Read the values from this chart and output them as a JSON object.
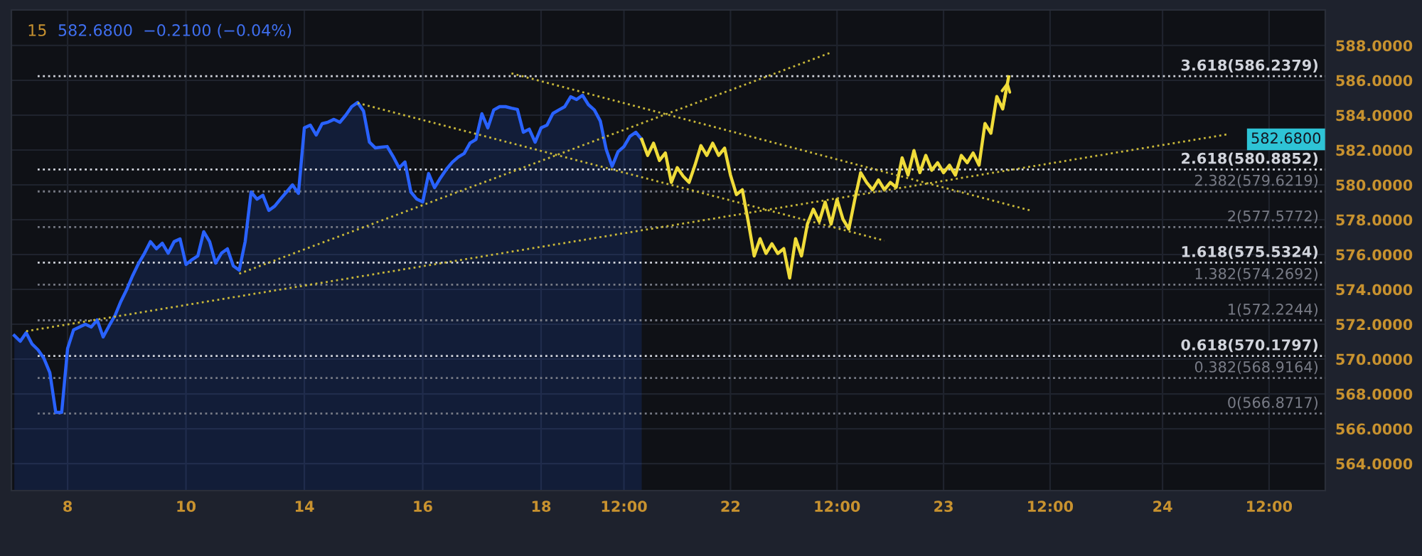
{
  "chart_data": {
    "type": "line",
    "title": "15",
    "subtitle": "582.6800  −0.2100 (−0.04%)",
    "categories": [
      null,
      null,
      null,
      null,
      null,
      null,
      null,
      null,
      null,
      "8",
      null,
      null,
      null,
      null,
      null,
      null,
      null,
      null,
      null,
      null,
      null,
      null,
      null,
      null,
      null,
      null,
      null,
      null,
      null,
      "10",
      null,
      null,
      null,
      null,
      null,
      null,
      null,
      null,
      null,
      null,
      null,
      null,
      null,
      null,
      null,
      null,
      null,
      null,
      null,
      "14",
      null,
      null,
      null,
      null,
      null,
      null,
      null,
      null,
      null,
      null,
      null,
      null,
      null,
      null,
      null,
      null,
      null,
      null,
      null,
      "16",
      null,
      null,
      null,
      null,
      null,
      null,
      null,
      null,
      null,
      null,
      null,
      null,
      null,
      null,
      null,
      null,
      null,
      null,
      null,
      "18",
      null,
      null,
      null,
      null,
      null,
      null,
      null,
      null,
      null,
      null,
      null,
      null,
      null,
      "12:00",
      null,
      null,
      null,
      null,
      null,
      null,
      null,
      null,
      null,
      null,
      null,
      null,
      null,
      null,
      null,
      null,
      null,
      "22",
      null,
      null,
      null,
      null,
      null,
      null,
      null,
      null,
      null,
      null,
      null,
      null,
      null,
      null,
      null,
      null,
      null,
      "12:00",
      null,
      null,
      null,
      null,
      null,
      null,
      null,
      null,
      null,
      null,
      null,
      null,
      null,
      null,
      null,
      null,
      null,
      "23",
      null,
      null,
      null,
      null,
      null,
      null,
      null,
      null,
      null,
      null,
      null,
      null,
      null,
      null,
      null,
      null,
      null,
      "12:00",
      null,
      null,
      null,
      null,
      null,
      null,
      null,
      null,
      null,
      null,
      null,
      null,
      null,
      null,
      null,
      null,
      null,
      null,
      "24",
      null,
      null,
      null,
      null,
      null,
      null,
      null,
      null,
      null,
      null,
      null,
      null,
      null,
      null,
      null,
      null,
      null,
      "12:00",
      null,
      null,
      null,
      null,
      null,
      null,
      null,
      null,
      null
    ],
    "ylim": [
      562.45,
      590.04
    ],
    "yticks": [
      {
        "value": 564,
        "label": "564.0000"
      },
      {
        "value": 566,
        "label": "566.0000"
      },
      {
        "value": 568,
        "label": "568.0000"
      },
      {
        "value": 570,
        "label": "570.0000"
      },
      {
        "value": 572,
        "label": "572.0000"
      },
      {
        "value": 574,
        "label": "574.0000"
      },
      {
        "value": 576,
        "label": "576.0000"
      },
      {
        "value": 578,
        "label": "578.0000"
      },
      {
        "value": 580,
        "label": "580.0000"
      },
      {
        "value": 582,
        "label": "582.0000"
      },
      {
        "value": 584,
        "label": "584.0000"
      },
      {
        "value": 586,
        "label": "586.0000"
      },
      {
        "value": 588,
        "label": "588.0000"
      }
    ],
    "grid": true,
    "series": [
      {
        "type": "area",
        "color": "#2962ff",
        "line_style": "solid",
        "values": [
          571.35,
          571.02,
          571.51,
          570.86,
          570.53,
          570.04,
          569.22,
          566.94,
          566.94,
          570.61,
          571.67,
          571.84,
          572.0,
          571.84,
          572.25,
          571.27,
          571.9,
          572.49,
          573.31,
          574.0,
          574.8,
          575.5,
          576.08,
          576.74,
          576.33,
          576.65,
          576.08,
          576.74,
          576.9,
          575.43,
          575.7,
          575.92,
          577.31,
          576.74,
          575.51,
          576.08,
          576.33,
          575.35,
          575.1,
          576.74,
          579.59,
          579.18,
          579.4,
          578.53,
          578.78,
          579.2,
          579.59,
          580.0,
          579.51,
          583.27,
          583.43,
          582.86,
          583.51,
          583.6,
          583.76,
          583.59,
          584.0,
          584.49,
          584.73,
          584.24,
          582.45,
          582.12,
          582.16,
          582.2,
          581.63,
          580.98,
          581.31,
          579.59,
          579.18,
          579.02,
          580.65,
          579.84,
          580.4,
          580.9,
          581.3,
          581.6,
          581.8,
          582.4,
          582.61,
          584.08,
          583.27,
          584.3,
          584.49,
          584.49,
          584.4,
          584.33,
          583.02,
          583.2,
          582.45,
          583.27,
          583.43,
          584.1,
          584.3,
          584.49,
          585.06,
          584.9,
          585.14,
          584.6,
          584.3,
          583.67,
          582.04,
          581.06,
          581.9,
          582.2,
          582.78,
          583.02,
          582.61,
          null,
          null,
          null,
          null,
          null,
          null,
          null,
          null,
          null,
          null,
          null,
          null,
          null,
          null,
          null,
          null,
          null,
          null,
          null,
          null,
          null,
          null,
          null,
          null,
          null,
          null,
          null,
          null,
          null,
          null,
          null,
          null,
          null,
          null,
          null,
          null,
          null,
          null,
          null,
          null,
          null,
          null,
          null,
          null,
          null,
          null,
          null,
          null,
          null,
          null,
          null,
          null,
          null,
          null,
          null,
          null,
          null,
          null,
          null,
          null,
          null,
          null,
          null,
          null,
          null,
          null,
          null,
          null,
          null,
          null,
          null,
          null,
          null,
          null,
          null,
          null,
          null,
          null,
          null,
          null,
          null,
          null,
          null,
          null,
          null,
          null,
          null,
          null,
          null,
          null,
          null,
          null,
          null,
          null,
          null,
          null,
          null,
          null,
          null,
          null,
          null,
          null,
          null,
          null,
          null,
          null,
          null,
          null,
          null,
          null,
          null,
          null,
          null,
          null,
          null
        ]
      },
      {
        "color": "#f0dc3a",
        "line_style": "solid",
        "values": [
          null,
          null,
          null,
          null,
          null,
          null,
          null,
          null,
          null,
          null,
          null,
          null,
          null,
          null,
          null,
          null,
          null,
          null,
          null,
          null,
          null,
          null,
          null,
          null,
          null,
          null,
          null,
          null,
          null,
          null,
          null,
          null,
          null,
          null,
          null,
          null,
          null,
          null,
          null,
          null,
          null,
          null,
          null,
          null,
          null,
          null,
          null,
          null,
          null,
          null,
          null,
          null,
          null,
          null,
          null,
          null,
          null,
          null,
          null,
          null,
          null,
          null,
          null,
          null,
          null,
          null,
          null,
          null,
          null,
          null,
          null,
          null,
          null,
          null,
          null,
          null,
          null,
          null,
          null,
          null,
          null,
          null,
          null,
          null,
          null,
          null,
          null,
          null,
          null,
          null,
          null,
          null,
          null,
          null,
          null,
          null,
          null,
          null,
          null,
          null,
          null,
          null,
          null,
          null,
          null,
          null,
          582.61,
          581.69,
          582.39,
          581.4,
          581.83,
          580.14,
          580.99,
          580.5,
          580.14,
          581.13,
          582.25,
          581.69,
          582.39,
          581.69,
          582.11,
          580.56,
          579.44,
          579.72,
          577.89,
          575.92,
          576.91,
          576.06,
          576.62,
          576.06,
          576.34,
          574.65,
          576.91,
          575.92,
          577.75,
          578.6,
          577.89,
          579.01,
          577.75,
          579.16,
          578.03,
          577.47,
          579.16,
          580.7,
          580.14,
          579.72,
          580.28,
          579.72,
          580.14,
          579.86,
          581.55,
          580.56,
          581.97,
          580.7,
          581.69,
          580.84,
          581.27,
          580.7,
          581.13,
          580.56,
          581.69,
          581.27,
          581.83,
          581.13,
          583.52,
          582.96,
          585.07,
          584.36,
          586.2,
          null,
          null,
          null,
          null,
          null,
          null,
          null,
          null,
          null,
          null,
          null,
          null,
          null,
          null,
          null,
          null,
          null,
          null,
          null,
          null,
          null,
          null,
          null,
          null,
          null,
          null,
          null,
          null,
          null,
          null,
          null,
          null,
          null,
          null,
          null,
          null,
          null,
          null,
          null,
          null,
          null,
          null,
          null,
          null,
          null,
          null,
          null,
          null,
          null,
          null,
          null,
          null,
          null
        ]
      },
      {
        "color": "#c9b83a",
        "line_style": "dotted",
        "values": [
          null,
          null,
          null,
          null,
          null,
          null,
          null,
          null,
          null,
          null,
          null,
          null,
          null,
          null,
          null,
          null,
          null,
          null,
          null,
          null,
          null,
          null,
          null,
          null,
          null,
          null,
          null,
          null,
          null,
          null,
          null,
          null,
          null,
          null,
          null,
          null,
          null,
          null,
          null,
          null,
          null,
          null,
          null,
          null,
          null,
          null,
          null,
          null,
          null,
          null,
          null,
          null,
          null,
          null,
          null,
          null,
          null,
          null,
          584.7,
          null,
          null,
          null,
          null,
          null,
          null,
          null,
          null,
          null,
          null,
          null,
          null,
          null,
          null,
          null,
          null,
          null,
          null,
          null,
          null,
          null,
          null,
          null,
          null,
          null,
          null,
          null,
          null,
          null,
          null,
          null,
          null,
          null,
          null,
          null,
          null,
          null,
          null,
          null,
          null,
          null,
          null,
          null,
          null,
          null,
          null,
          null,
          null,
          null,
          null,
          null,
          null,
          null,
          null,
          null,
          null,
          null,
          null,
          null,
          null,
          null,
          null,
          null,
          null,
          null,
          null,
          null,
          null,
          null,
          null,
          null,
          null,
          null,
          null,
          null,
          null,
          null,
          null,
          null,
          null,
          null,
          null,
          null,
          null,
          null,
          null,
          null,
          null,
          576.8,
          null,
          null,
          null,
          null,
          null,
          null,
          null,
          null,
          null,
          null,
          null,
          null,
          null,
          null,
          null,
          null,
          null,
          null,
          null,
          null,
          null,
          null,
          null,
          null,
          null,
          null,
          null,
          null,
          null,
          null,
          null,
          null,
          null,
          null,
          null,
          null,
          null,
          null,
          null,
          null,
          null,
          null,
          null,
          null,
          null,
          null,
          null,
          null,
          null,
          null,
          null,
          null,
          null,
          null,
          null,
          null,
          null,
          null,
          null,
          null,
          null,
          null,
          null,
          null,
          null,
          null,
          null,
          null,
          null,
          null,
          null,
          null,
          null,
          null
        ]
      },
      {
        "color": "#c9b83a",
        "line_style": "dotted",
        "values": [
          null,
          null,
          null,
          null,
          null,
          null,
          null,
          null,
          null,
          null,
          null,
          null,
          null,
          null,
          null,
          null,
          null,
          null,
          null,
          null,
          null,
          null,
          null,
          null,
          null,
          null,
          null,
          null,
          null,
          null,
          null,
          null,
          null,
          null,
          null,
          null,
          null,
          null,
          null,
          null,
          null,
          null,
          null,
          null,
          null,
          null,
          null,
          null,
          null,
          null,
          null,
          null,
          null,
          null,
          null,
          null,
          null,
          null,
          null,
          null,
          null,
          null,
          null,
          null,
          null,
          null,
          null,
          null,
          null,
          null,
          null,
          null,
          null,
          null,
          null,
          null,
          null,
          null,
          null,
          null,
          null,
          null,
          null,
          null,
          586.4,
          null,
          null,
          null,
          null,
          null,
          null,
          null,
          null,
          null,
          null,
          null,
          null,
          null,
          null,
          null,
          null,
          null,
          null,
          null,
          null,
          null,
          null,
          null,
          null,
          null,
          null,
          null,
          null,
          null,
          null,
          null,
          null,
          null,
          null,
          null,
          null,
          null,
          null,
          null,
          null,
          null,
          null,
          null,
          null,
          null,
          null,
          null,
          null,
          null,
          null,
          null,
          null,
          null,
          null,
          null,
          null,
          null,
          null,
          null,
          null,
          null,
          null,
          null,
          null,
          null,
          null,
          null,
          null,
          null,
          null,
          null,
          null,
          null,
          null,
          null,
          null,
          null,
          null,
          null,
          null,
          null,
          null,
          null,
          null,
          null,
          null,
          null,
          578.5,
          null,
          null,
          null,
          null,
          null,
          null,
          null,
          null,
          null,
          null,
          null,
          null,
          null,
          null,
          null,
          null,
          null,
          null,
          null,
          null,
          null,
          null,
          null,
          null,
          null,
          null,
          null,
          null,
          null,
          null,
          null,
          null,
          null,
          null,
          null,
          null,
          null,
          null,
          null,
          null,
          null,
          null,
          null,
          null,
          null,
          null,
          null,
          null,
          null
        ]
      },
      {
        "color": "#c9b83a",
        "line_style": "dotted",
        "values": [
          null,
          null,
          null,
          null,
          null,
          null,
          null,
          null,
          null,
          null,
          null,
          null,
          null,
          null,
          null,
          null,
          null,
          null,
          null,
          null,
          null,
          null,
          null,
          null,
          null,
          null,
          null,
          null,
          null,
          null,
          null,
          null,
          null,
          null,
          null,
          null,
          null,
          null,
          574.9,
          null,
          null,
          null,
          null,
          null,
          null,
          null,
          null,
          null,
          null,
          null,
          null,
          null,
          null,
          null,
          null,
          null,
          null,
          null,
          null,
          null,
          null,
          null,
          null,
          null,
          null,
          null,
          null,
          null,
          null,
          null,
          null,
          null,
          null,
          null,
          null,
          null,
          null,
          null,
          null,
          null,
          null,
          null,
          null,
          null,
          null,
          null,
          null,
          null,
          null,
          null,
          null,
          null,
          null,
          null,
          null,
          null,
          null,
          null,
          null,
          null,
          null,
          null,
          null,
          null,
          null,
          null,
          null,
          null,
          null,
          null,
          null,
          null,
          null,
          null,
          null,
          null,
          null,
          null,
          null,
          null,
          null,
          null,
          null,
          null,
          null,
          null,
          null,
          null,
          null,
          null,
          null,
          null,
          null,
          null,
          null,
          null,
          null,
          null,
          587.6,
          null,
          null,
          null,
          null,
          null,
          null,
          null,
          null,
          null,
          null,
          null,
          null,
          null,
          null,
          null,
          null,
          null,
          null,
          null,
          null,
          null,
          null,
          null,
          null,
          null,
          null,
          null,
          null,
          null,
          null,
          null,
          null,
          null,
          null,
          null,
          null,
          null,
          null,
          null,
          null,
          null,
          null,
          null,
          null,
          null,
          null,
          null,
          null,
          null,
          null,
          null,
          null,
          null,
          null,
          null,
          null,
          null,
          null,
          null,
          null,
          null,
          null,
          null,
          null,
          null,
          null,
          null,
          null,
          null,
          null,
          null,
          null,
          null,
          null,
          null,
          null,
          null,
          null,
          null,
          null,
          null,
          null,
          null
        ]
      },
      {
        "color": "#c9b83a",
        "line_style": "dotted",
        "values": [
          null,
          null,
          571.6,
          null,
          null,
          null,
          null,
          null,
          null,
          null,
          null,
          null,
          null,
          null,
          null,
          null,
          null,
          null,
          null,
          null,
          null,
          null,
          null,
          null,
          null,
          null,
          null,
          null,
          null,
          null,
          null,
          null,
          null,
          null,
          null,
          null,
          null,
          null,
          null,
          null,
          null,
          null,
          null,
          null,
          null,
          null,
          null,
          null,
          null,
          null,
          null,
          null,
          null,
          null,
          null,
          null,
          null,
          null,
          null,
          null,
          null,
          null,
          null,
          null,
          null,
          null,
          null,
          null,
          null,
          null,
          null,
          null,
          null,
          null,
          null,
          null,
          null,
          null,
          null,
          null,
          null,
          null,
          null,
          null,
          null,
          null,
          null,
          null,
          null,
          null,
          null,
          null,
          null,
          null,
          null,
          null,
          null,
          null,
          null,
          null,
          null,
          null,
          null,
          null,
          null,
          null,
          null,
          null,
          null,
          null,
          null,
          null,
          null,
          null,
          null,
          null,
          null,
          null,
          null,
          null,
          null,
          null,
          null,
          null,
          null,
          null,
          null,
          null,
          null,
          null,
          null,
          null,
          null,
          null,
          null,
          null,
          null,
          null,
          null,
          null,
          null,
          null,
          null,
          null,
          null,
          null,
          null,
          null,
          null,
          null,
          null,
          null,
          null,
          null,
          null,
          null,
          null,
          null,
          null,
          null,
          null,
          null,
          null,
          null,
          null,
          null,
          null,
          null,
          null,
          null,
          null,
          null,
          null,
          null,
          null,
          null,
          null,
          null,
          null,
          null,
          null,
          null,
          null,
          null,
          null,
          null,
          null,
          null,
          null,
          null,
          null,
          null,
          null,
          null,
          null,
          null,
          null,
          null,
          null,
          null,
          null,
          null,
          null,
          null,
          null,
          582.9,
          null,
          null,
          null,
          null,
          null,
          null,
          null,
          null,
          null,
          null,
          null,
          null,
          null,
          null,
          null,
          null
        ]
      }
    ],
    "ref_lines": [
      {
        "axis": "y",
        "value": 586.2379,
        "label": "3.618(586.2379)",
        "color": "#d1d4dc",
        "line_style": "dotted"
      },
      {
        "axis": "y",
        "value": 580.8852,
        "label": "2.618(580.8852)",
        "color": "#d1d4dc",
        "line_style": "dotted"
      },
      {
        "axis": "y",
        "value": 579.6219,
        "label": "2.382(579.6219)",
        "color": "#787b86",
        "line_style": "dotted"
      },
      {
        "axis": "y",
        "value": 577.5772,
        "label": "2(577.5772)",
        "color": "#787b86",
        "line_style": "dotted"
      },
      {
        "axis": "y",
        "value": 575.5324,
        "label": "1.618(575.5324)",
        "color": "#d1d4dc",
        "line_style": "dotted"
      },
      {
        "axis": "y",
        "value": 574.2692,
        "label": "1.382(574.2692)",
        "color": "#787b86",
        "line_style": "dotted"
      },
      {
        "axis": "y",
        "value": 572.2244,
        "label": "1(572.2244)",
        "color": "#787b86",
        "line_style": "dotted"
      },
      {
        "axis": "y",
        "value": 570.1797,
        "label": "0.618(570.1797)",
        "color": "#d1d4dc",
        "line_style": "dotted"
      },
      {
        "axis": "y",
        "value": 568.9164,
        "label": "0.382(568.9164)",
        "color": "#787b86",
        "line_style": "dotted"
      },
      {
        "axis": "y",
        "value": 566.8717,
        "label": "0(566.8717)",
        "color": "#787b86",
        "line_style": "dotted"
      }
    ],
    "annotations": [
      "582.6800"
    ]
  }
}
